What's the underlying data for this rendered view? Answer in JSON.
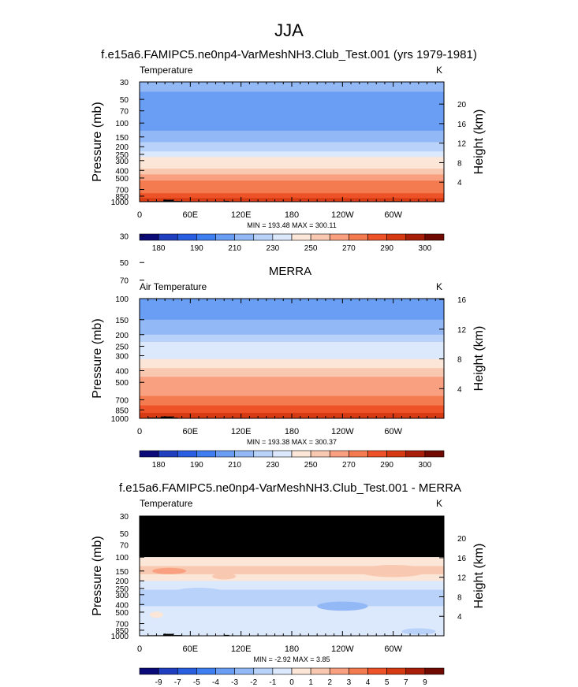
{
  "figure": {
    "season": "JJA",
    "palette": [
      "#0a0a78",
      "#1f3fc0",
      "#2a5ee0",
      "#3f7ef0",
      "#6a9ef4",
      "#92b8f6",
      "#b8d2fa",
      "#dce8fb",
      "#fbe6d8",
      "#f9c8b0",
      "#f8a080",
      "#f47a50",
      "#ee5228",
      "#d63a12",
      "#a81e08",
      "#700a00"
    ]
  },
  "chart_data": [
    {
      "type": "heatmap",
      "title": "f.e15a6.FAMIPC5.ne0np4-VarMeshNH3.Club_Test.001 (yrs 1979-1981)",
      "variable_label": "Temperature",
      "units_label": "K",
      "ylabel": "Pressure (mb)",
      "y2label": "Height (km)",
      "xticks": [
        "0",
        "60E",
        "120E",
        "180",
        "120W",
        "60W"
      ],
      "yticks": [
        "30",
        "50",
        "70",
        "100",
        "150",
        "200",
        "250",
        "300",
        "400",
        "500",
        "700",
        "850",
        "1000"
      ],
      "y2ticks": [
        "20",
        "16",
        "12",
        "8",
        "4"
      ],
      "stats": "MIN = 193.48  MAX = 300.11",
      "colorbar_labels": [
        "180",
        "190",
        "210",
        "230",
        "250",
        "270",
        "290",
        "300"
      ],
      "top_pressure": 30,
      "bands": [
        {
          "p_top": 30,
          "p_bottom": 40,
          "value": 213
        },
        {
          "p_top": 40,
          "p_bottom": 55,
          "value": 209
        },
        {
          "p_top": 55,
          "p_bottom": 70,
          "value": 205
        },
        {
          "p_top": 70,
          "p_bottom": 100,
          "value": 200
        },
        {
          "p_top": 100,
          "p_bottom": 125,
          "value": 205
        },
        {
          "p_top": 125,
          "p_bottom": 150,
          "value": 210
        },
        {
          "p_top": 150,
          "p_bottom": 175,
          "value": 215
        },
        {
          "p_top": 175,
          "p_bottom": 200,
          "value": 220
        },
        {
          "p_top": 200,
          "p_bottom": 230,
          "value": 225
        },
        {
          "p_top": 230,
          "p_bottom": 270,
          "value": 232
        },
        {
          "p_top": 270,
          "p_bottom": 320,
          "value": 240
        },
        {
          "p_top": 320,
          "p_bottom": 380,
          "value": 248
        },
        {
          "p_top": 380,
          "p_bottom": 450,
          "value": 255
        },
        {
          "p_top": 450,
          "p_bottom": 540,
          "value": 262
        },
        {
          "p_top": 540,
          "p_bottom": 650,
          "value": 270
        },
        {
          "p_top": 650,
          "p_bottom": 780,
          "value": 278
        },
        {
          "p_top": 780,
          "p_bottom": 900,
          "value": 286
        },
        {
          "p_top": 900,
          "p_bottom": 1000,
          "value": 292
        }
      ],
      "topography": [
        {
          "lon": 10,
          "p_top": 985,
          "width": 40
        },
        {
          "lon": 28,
          "p_top": 945,
          "width": 12
        },
        {
          "lon": 40,
          "p_top": 980,
          "width": 10
        },
        {
          "lon": 100,
          "p_top": 975,
          "width": 6
        },
        {
          "lon": 290,
          "p_top": 985,
          "width": 20
        }
      ]
    },
    {
      "type": "heatmap",
      "title": "MERRA",
      "variable_label": "Air Temperature",
      "units_label": "K",
      "ylabel": "Pressure (mb)",
      "y2label": "Height (km)",
      "xticks": [
        "0",
        "60E",
        "120E",
        "180",
        "120W",
        "60W"
      ],
      "yticks": [
        "30",
        "50",
        "70",
        "100",
        "150",
        "200",
        "250",
        "300",
        "400",
        "500",
        "700",
        "850",
        "1000"
      ],
      "y2ticks": [
        "16",
        "12",
        "8",
        "4"
      ],
      "stats": "MIN = 193.38  MAX = 300.37",
      "colorbar_labels": [
        "180",
        "190",
        "210",
        "230",
        "250",
        "270",
        "290",
        "300"
      ],
      "top_pressure": 100,
      "bands": [
        {
          "p_top": 100,
          "p_bottom": 125,
          "value": 204
        },
        {
          "p_top": 125,
          "p_bottom": 150,
          "value": 209
        },
        {
          "p_top": 150,
          "p_bottom": 175,
          "value": 214
        },
        {
          "p_top": 175,
          "p_bottom": 200,
          "value": 219
        },
        {
          "p_top": 200,
          "p_bottom": 230,
          "value": 224
        },
        {
          "p_top": 230,
          "p_bottom": 270,
          "value": 231
        },
        {
          "p_top": 270,
          "p_bottom": 320,
          "value": 239
        },
        {
          "p_top": 320,
          "p_bottom": 380,
          "value": 247
        },
        {
          "p_top": 380,
          "p_bottom": 450,
          "value": 254
        },
        {
          "p_top": 450,
          "p_bottom": 540,
          "value": 261
        },
        {
          "p_top": 540,
          "p_bottom": 650,
          "value": 269
        },
        {
          "p_top": 650,
          "p_bottom": 780,
          "value": 277
        },
        {
          "p_top": 780,
          "p_bottom": 900,
          "value": 285
        },
        {
          "p_top": 900,
          "p_bottom": 1000,
          "value": 292
        }
      ],
      "topography": [
        {
          "lon": 10,
          "p_top": 985,
          "width": 35
        },
        {
          "lon": 25,
          "p_top": 965,
          "width": 14
        }
      ]
    },
    {
      "type": "heatmap",
      "title": "f.e15a6.FAMIPC5.ne0np4-VarMeshNH3.Club_Test.001 - MERRA",
      "variable_label": "Temperature",
      "units_label": "K",
      "ylabel": "Pressure (mb)",
      "y2label": "Height (km)",
      "xticks": [
        "0",
        "60E",
        "120E",
        "180",
        "120W",
        "60W"
      ],
      "yticks": [
        "30",
        "50",
        "70",
        "100",
        "150",
        "200",
        "250",
        "300",
        "400",
        "500",
        "700",
        "850",
        "1000"
      ],
      "y2ticks": [
        "20",
        "16",
        "12",
        "8",
        "4"
      ],
      "stats": "MIN = -2.92  MAX =  3.85",
      "colorbar_labels": [
        "-9",
        "-7",
        "-5",
        "-4",
        "-3",
        "-2",
        "-1",
        "0",
        "1",
        "2",
        "3",
        "4",
        "5",
        "7",
        "9"
      ],
      "top_pressure": 30,
      "missing_above_pressure": 100,
      "bands": [
        {
          "p_top": 100,
          "p_bottom": 130,
          "value": 0.8
        },
        {
          "p_top": 130,
          "p_bottom": 165,
          "value": 1.4
        },
        {
          "p_top": 165,
          "p_bottom": 200,
          "value": 0.6
        },
        {
          "p_top": 200,
          "p_bottom": 260,
          "value": -0.4
        },
        {
          "p_top": 260,
          "p_bottom": 420,
          "value": -1.3
        },
        {
          "p_top": 420,
          "p_bottom": 600,
          "value": -0.6
        },
        {
          "p_top": 600,
          "p_bottom": 1000,
          "value": -0.3
        }
      ],
      "blobs": [
        {
          "lon": 35,
          "p": 150,
          "dlon": 20,
          "value": 2.5
        },
        {
          "lon": 300,
          "p": 150,
          "dlon": 40,
          "value": 1.8
        },
        {
          "lon": 100,
          "p": 175,
          "dlon": 14,
          "value": 1.5
        },
        {
          "lon": 20,
          "p": 540,
          "dlon": 8,
          "value": 0.6
        },
        {
          "lon": 240,
          "p": 420,
          "dlon": 30,
          "value": -2.2
        },
        {
          "lon": 70,
          "p": 280,
          "dlon": 30,
          "value": -2.0
        },
        {
          "lon": 330,
          "p": 880,
          "dlon": 20,
          "value": -1.4
        }
      ],
      "topography": [
        {
          "lon": 10,
          "p_top": 985,
          "width": 40
        },
        {
          "lon": 28,
          "p_top": 945,
          "width": 12
        },
        {
          "lon": 40,
          "p_top": 980,
          "width": 10
        },
        {
          "lon": 100,
          "p_top": 975,
          "width": 6
        },
        {
          "lon": 290,
          "p_top": 985,
          "width": 20
        }
      ]
    }
  ]
}
